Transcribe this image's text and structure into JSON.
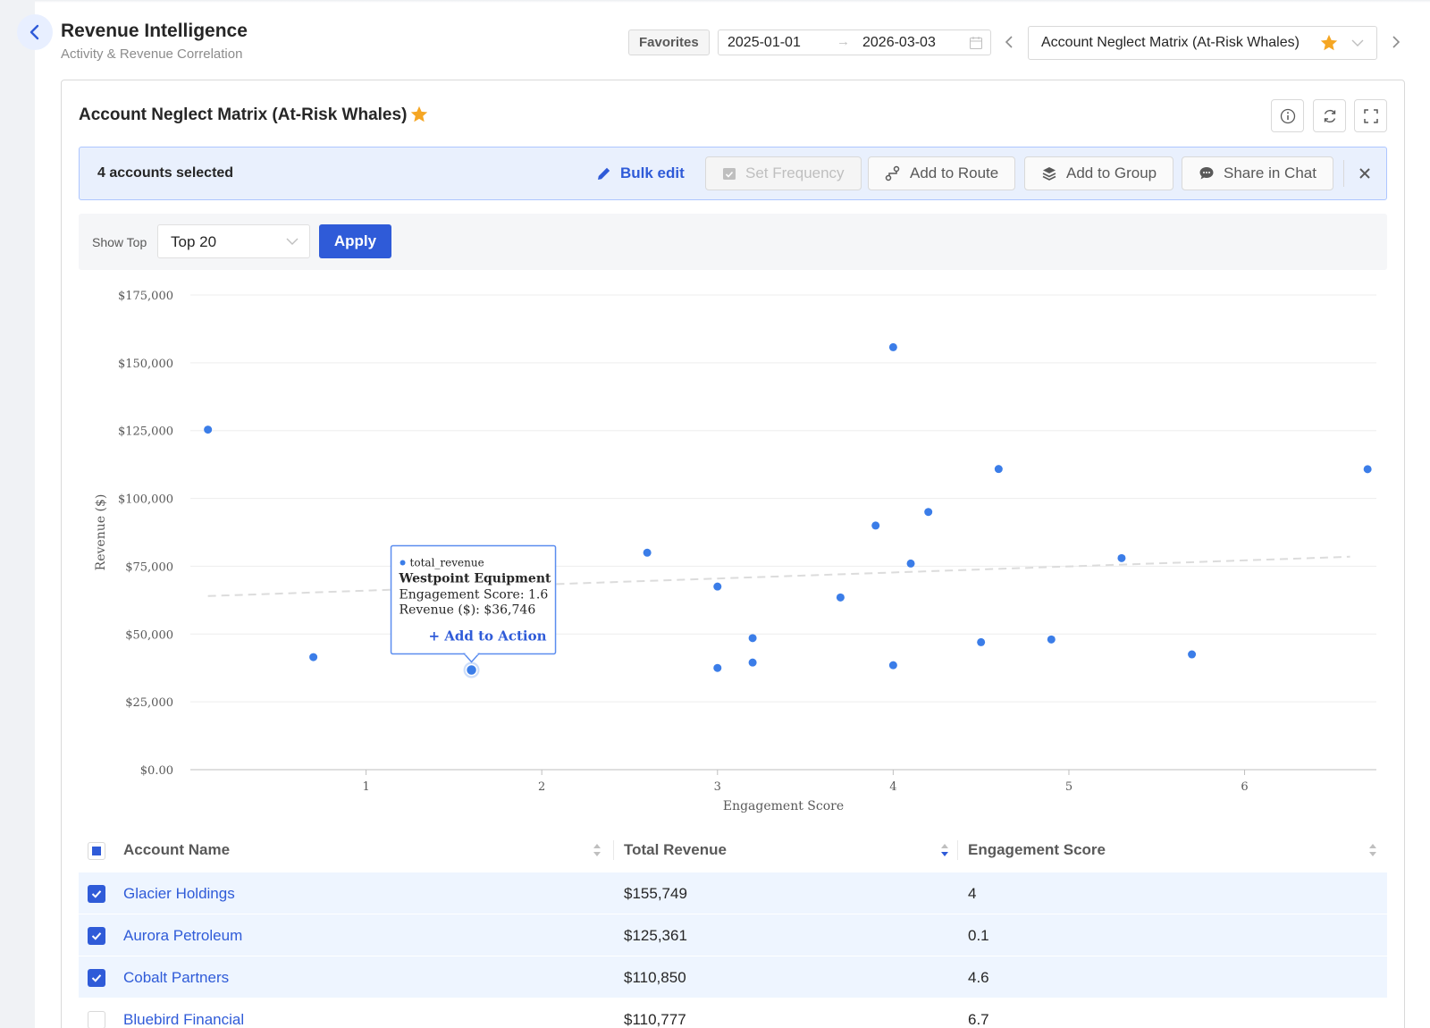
{
  "header": {
    "title": "Revenue Intelligence",
    "subtitle": "Activity & Revenue Correlation",
    "favorites_label": "Favorites",
    "date_start": "2025-01-01",
    "date_arrow": "→",
    "date_end": "2026-03-03",
    "report_select_value": "Account Neglect Matrix (At-Risk Whales)"
  },
  "card": {
    "title": "Account Neglect Matrix (At-Risk Whales)",
    "starred": true
  },
  "selection_bar": {
    "count_text": "4 accounts selected",
    "bulk_edit": "Bulk edit",
    "set_frequency": "Set Frequency",
    "add_to_route": "Add to Route",
    "add_to_group": "Add to Group",
    "share_in_chat": "Share in Chat"
  },
  "filter": {
    "label": "Show Top",
    "value": "Top 20",
    "apply": "Apply"
  },
  "colors": {
    "accent": "#2f5bd8",
    "point": "#3b7de8",
    "star": "#f5a623"
  },
  "chart_data": {
    "type": "scatter",
    "xlabel": "Engagement Score",
    "ylabel": "Revenue ($)",
    "xlim": [
      0,
      6.75
    ],
    "ylim": [
      0,
      175000
    ],
    "x_ticks": [
      1,
      2,
      3,
      4,
      5,
      6
    ],
    "y_tick_values": [
      0,
      25000,
      50000,
      75000,
      100000,
      125000,
      150000,
      175000
    ],
    "y_tick_labels": [
      "$0.00",
      "$25,000",
      "$50,000",
      "$75,000",
      "$100,000",
      "$125,000",
      "$150,000",
      "$175,000"
    ],
    "grid": "horizontal",
    "series": [
      {
        "name": "total_revenue",
        "points": [
          {
            "x": 4.0,
            "y": 155749
          },
          {
            "x": 0.1,
            "y": 125361
          },
          {
            "x": 4.6,
            "y": 110850
          },
          {
            "x": 6.7,
            "y": 110777
          },
          {
            "x": 4.2,
            "y": 95000
          },
          {
            "x": 3.9,
            "y": 90000
          },
          {
            "x": 2.6,
            "y": 80000
          },
          {
            "x": 5.3,
            "y": 78000
          },
          {
            "x": 4.1,
            "y": 76000
          },
          {
            "x": 3.0,
            "y": 67500
          },
          {
            "x": 3.7,
            "y": 63500
          },
          {
            "x": 3.2,
            "y": 48500
          },
          {
            "x": 4.9,
            "y": 48000
          },
          {
            "x": 4.5,
            "y": 47000
          },
          {
            "x": 5.7,
            "y": 42500
          },
          {
            "x": 0.7,
            "y": 41500
          },
          {
            "x": 3.2,
            "y": 39500
          },
          {
            "x": 4.0,
            "y": 38500
          },
          {
            "x": 3.0,
            "y": 37500
          },
          {
            "x": 1.6,
            "y": 36746
          }
        ]
      }
    ],
    "trendline": {
      "start": {
        "x": 0.1,
        "y": 64000
      },
      "end": {
        "x": 6.6,
        "y": 78500
      }
    },
    "tooltip": {
      "series_name": "total_revenue",
      "title": "Westpoint Equipment",
      "line1": "Engagement Score: 1.6",
      "line2": "Revenue ($): $36,746",
      "action": "+ Add to Action",
      "x": 1.6,
      "y": 36746
    }
  },
  "table": {
    "columns": [
      "Account Name",
      "Total Revenue",
      "Engagement Score"
    ],
    "rows": [
      {
        "name": "Glacier Holdings",
        "revenue": "$155,749",
        "score": "4",
        "selected": true
      },
      {
        "name": "Aurora Petroleum",
        "revenue": "$125,361",
        "score": "0.1",
        "selected": true
      },
      {
        "name": "Cobalt Partners",
        "revenue": "$110,850",
        "score": "4.6",
        "selected": true
      },
      {
        "name": "Bluebird Financial",
        "revenue": "$110,777",
        "score": "6.7",
        "selected": false
      }
    ]
  }
}
